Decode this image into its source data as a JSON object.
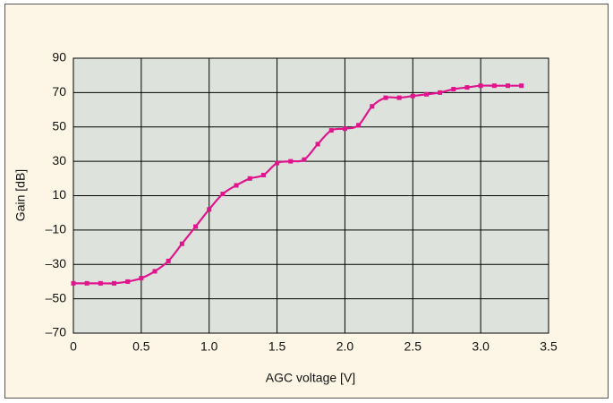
{
  "chart_data": {
    "type": "line",
    "ylabel": "Gain [dB]",
    "xlabel": "AGC voltage [V]",
    "x": [
      0,
      0.1,
      0.2,
      0.3,
      0.4,
      0.5,
      0.6,
      0.7,
      0.8,
      0.9,
      1.0,
      1.1,
      1.2,
      1.3,
      1.4,
      1.5,
      1.6,
      1.7,
      1.8,
      1.9,
      2.0,
      2.1,
      2.2,
      2.3,
      2.4,
      2.5,
      2.6,
      2.7,
      2.8,
      2.9,
      3.0,
      3.1,
      3.2,
      3.3
    ],
    "series": [
      {
        "color": "#e0148c",
        "values": [
          -41,
          -41,
          -41,
          -41,
          -40,
          -38,
          -34,
          -28,
          -18,
          -8,
          2,
          11,
          16,
          20,
          22,
          29,
          30,
          31,
          40,
          48,
          49,
          51,
          62,
          67,
          67,
          68,
          69,
          70,
          72,
          73,
          74,
          74,
          74,
          74
        ]
      }
    ],
    "xlim": [
      0,
      3.5
    ],
    "xticks": [
      0,
      0.5,
      {
        "value": 1,
        "label": "1.0"
      },
      1.5,
      {
        "value": 2,
        "label": "2.0"
      },
      2.5,
      {
        "value": 3,
        "label": "3.0"
      },
      3.5
    ],
    "ylim": [
      -70,
      90
    ],
    "yticks": [
      {
        "value": -70,
        "label": "–70"
      },
      {
        "value": -50,
        "label": "–50"
      },
      {
        "value": -30,
        "label": "–30"
      },
      {
        "value": -10,
        "label": "–10"
      },
      10,
      30,
      50,
      70,
      90
    ],
    "grid": true
  }
}
